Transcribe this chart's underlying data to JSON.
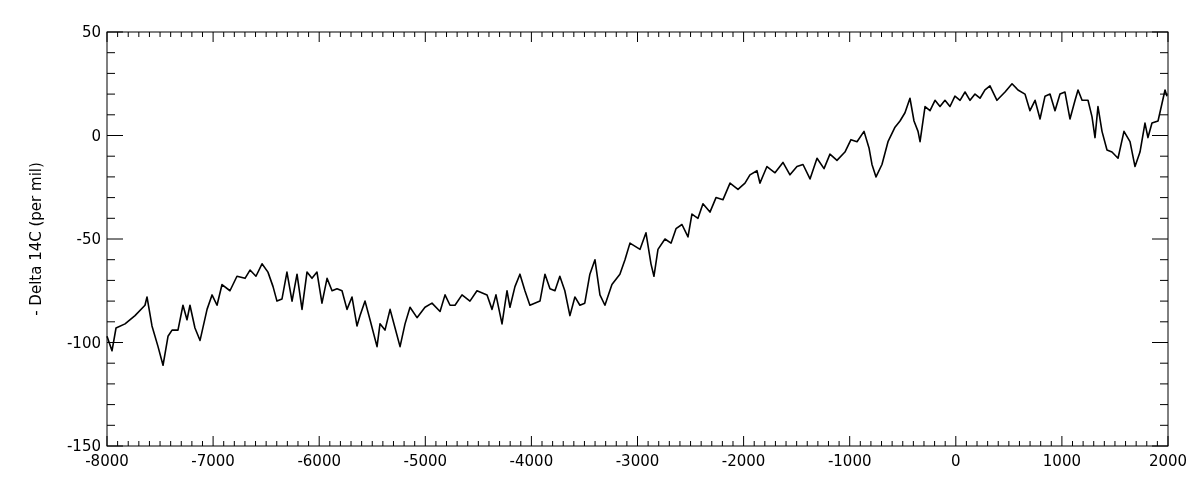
{
  "chart_data": {
    "type": "line",
    "ylabel": "- Delta 14C (per mil)",
    "xlim": [
      -8000,
      2000
    ],
    "ylim": [
      -150,
      50
    ],
    "xticks": [
      -8000,
      {
        "value": -7900,
        "label": null
      },
      {
        "value": -7800,
        "label": null
      },
      {
        "value": -7700,
        "label": null
      },
      {
        "value": -7600,
        "label": null
      },
      {
        "value": -7500,
        "label": null
      },
      {
        "value": -7400,
        "label": null
      },
      {
        "value": -7300,
        "label": null
      },
      {
        "value": -7200,
        "label": null
      },
      {
        "value": -7100,
        "label": null
      },
      -7000,
      {
        "value": -6900,
        "label": null
      },
      {
        "value": -6800,
        "label": null
      },
      {
        "value": -6700,
        "label": null
      },
      {
        "value": -6600,
        "label": null
      },
      {
        "value": -6500,
        "label": null
      },
      {
        "value": -6400,
        "label": null
      },
      {
        "value": -6300,
        "label": null
      },
      {
        "value": -6200,
        "label": null
      },
      {
        "value": -6100,
        "label": null
      },
      -6000,
      {
        "value": -5900,
        "label": null
      },
      {
        "value": -5800,
        "label": null
      },
      {
        "value": -5700,
        "label": null
      },
      {
        "value": -5600,
        "label": null
      },
      {
        "value": -5500,
        "label": null
      },
      {
        "value": -5400,
        "label": null
      },
      {
        "value": -5300,
        "label": null
      },
      {
        "value": -5200,
        "label": null
      },
      {
        "value": -5100,
        "label": null
      },
      -5000,
      {
        "value": -4900,
        "label": null
      },
      {
        "value": -4800,
        "label": null
      },
      {
        "value": -4700,
        "label": null
      },
      {
        "value": -4600,
        "label": null
      },
      {
        "value": -4500,
        "label": null
      },
      {
        "value": -4400,
        "label": null
      },
      {
        "value": -4300,
        "label": null
      },
      {
        "value": -4200,
        "label": null
      },
      {
        "value": -4100,
        "label": null
      },
      -4000,
      {
        "value": -3900,
        "label": null
      },
      {
        "value": -3800,
        "label": null
      },
      {
        "value": -3700,
        "label": null
      },
      {
        "value": -3600,
        "label": null
      },
      {
        "value": -3500,
        "label": null
      },
      {
        "value": -3400,
        "label": null
      },
      {
        "value": -3300,
        "label": null
      },
      {
        "value": -3200,
        "label": null
      },
      {
        "value": -3100,
        "label": null
      },
      -3000,
      {
        "value": -2900,
        "label": null
      },
      {
        "value": -2800,
        "label": null
      },
      {
        "value": -2700,
        "label": null
      },
      {
        "value": -2600,
        "label": null
      },
      {
        "value": -2500,
        "label": null
      },
      {
        "value": -2400,
        "label": null
      },
      {
        "value": -2300,
        "label": null
      },
      {
        "value": -2200,
        "label": null
      },
      {
        "value": -2100,
        "label": null
      },
      -2000,
      {
        "value": -1900,
        "label": null
      },
      {
        "value": -1800,
        "label": null
      },
      {
        "value": -1700,
        "label": null
      },
      {
        "value": -1600,
        "label": null
      },
      {
        "value": -1500,
        "label": null
      },
      {
        "value": -1400,
        "label": null
      },
      {
        "value": -1300,
        "label": null
      },
      {
        "value": -1200,
        "label": null
      },
      {
        "value": -1100,
        "label": null
      },
      -1000,
      {
        "value": -900,
        "label": null
      },
      {
        "value": -800,
        "label": null
      },
      {
        "value": -700,
        "label": null
      },
      {
        "value": -600,
        "label": null
      },
      {
        "value": -500,
        "label": null
      },
      {
        "value": -400,
        "label": null
      },
      {
        "value": -300,
        "label": null
      },
      {
        "value": -200,
        "label": null
      },
      {
        "value": -100,
        "label": null
      },
      0,
      {
        "value": 100,
        "label": null
      },
      {
        "value": 200,
        "label": null
      },
      {
        "value": 300,
        "label": null
      },
      {
        "value": 400,
        "label": null
      },
      {
        "value": 500,
        "label": null
      },
      {
        "value": 600,
        "label": null
      },
      {
        "value": 700,
        "label": null
      },
      {
        "value": 800,
        "label": null
      },
      {
        "value": 900,
        "label": null
      },
      1000,
      {
        "value": 1100,
        "label": null
      },
      {
        "value": 1200,
        "label": null
      },
      {
        "value": 1300,
        "label": null
      },
      {
        "value": 1400,
        "label": null
      },
      {
        "value": 1500,
        "label": null
      },
      {
        "value": 1600,
        "label": null
      },
      {
        "value": 1700,
        "label": null
      },
      {
        "value": 1800,
        "label": null
      },
      {
        "value": 1900,
        "label": null
      },
      2000
    ],
    "yticks": [
      -150,
      {
        "value": -140,
        "label": null
      },
      {
        "value": -130,
        "label": null
      },
      {
        "value": -120,
        "label": null
      },
      {
        "value": -110,
        "label": null
      },
      -100,
      {
        "value": -90,
        "label": null
      },
      {
        "value": -80,
        "label": null
      },
      {
        "value": -70,
        "label": null
      },
      {
        "value": -60,
        "label": null
      },
      -50,
      {
        "value": -40,
        "label": null
      },
      {
        "value": -30,
        "label": null
      },
      {
        "value": -20,
        "label": null
      },
      {
        "value": -10,
        "label": null
      },
      0,
      {
        "value": 10,
        "label": null
      },
      {
        "value": 20,
        "label": null
      },
      {
        "value": 30,
        "label": null
      },
      {
        "value": 40,
        "label": null
      },
      50
    ],
    "series": [
      {
        "color": "#000000",
        "x": [
          -8000,
          -7953,
          -7915,
          -7830,
          -7736,
          -7642,
          -7623,
          -7576,
          -7519,
          -7472,
          -7425,
          -7387,
          -7331,
          -7284,
          -7246,
          -7218,
          -7171,
          -7123,
          -7057,
          -7010,
          -6963,
          -6916,
          -6841,
          -6775,
          -6699,
          -6652,
          -6596,
          -6539,
          -6483,
          -6435,
          -6398,
          -6351,
          -6304,
          -6256,
          -6209,
          -6162,
          -6115,
          -6068,
          -6021,
          -5974,
          -5926,
          -5879,
          -5832,
          -5785,
          -5738,
          -5691,
          -5644,
          -5615,
          -5568,
          -5521,
          -5455,
          -5427,
          -5380,
          -5332,
          -5285,
          -5238,
          -5191,
          -5144,
          -5078,
          -5003,
          -4937,
          -4861,
          -4814,
          -4767,
          -4720,
          -4654,
          -4579,
          -4513,
          -4418,
          -4371,
          -4334,
          -4277,
          -4230,
          -4202,
          -4155,
          -4108,
          -4061,
          -4014,
          -3919,
          -3872,
          -3825,
          -3778,
          -3732,
          -3685,
          -3637,
          -3590,
          -3543,
          -3497,
          -3449,
          -3401,
          -3354,
          -3307,
          -3241,
          -3166,
          -3118,
          -3071,
          -2976,
          -2920,
          -2873,
          -2845,
          -2807,
          -2741,
          -2684,
          -2637,
          -2581,
          -2524,
          -2487,
          -2430,
          -2383,
          -2317,
          -2260,
          -2194,
          -2128,
          -2053,
          -1987,
          -1940,
          -1874,
          -1846,
          -1780,
          -1704,
          -1629,
          -1563,
          -1497,
          -1440,
          -1374,
          -1308,
          -1242,
          -1186,
          -1120,
          -1045,
          -988,
          -931,
          -865,
          -818,
          -790,
          -752,
          -696,
          -639,
          -573,
          -526,
          -479,
          -432,
          -394,
          -356,
          -337,
          -290,
          -243,
          -196,
          -149,
          -102,
          -55,
          -8,
          40,
          87,
          134,
          181,
          228,
          275,
          322,
          388,
          464,
          530,
          586,
          652,
          699,
          747,
          794,
          841,
          888,
          935,
          982,
          1029,
          1076,
          1124,
          1152,
          1190,
          1246,
          1284,
          1312,
          1340,
          1378,
          1425,
          1472,
          1529,
          1585,
          1642,
          1689,
          1736,
          1783,
          1811,
          1849,
          1906,
          1972,
          1990
        ],
        "values": [
          -97,
          -104,
          -93,
          -91,
          -87,
          -82,
          -78,
          -92,
          -102,
          -111,
          -97,
          -94,
          -94,
          -82,
          -89,
          -82,
          -93,
          -99,
          -84,
          -77,
          -82,
          -72,
          -75,
          -68,
          -69,
          -65,
          -68,
          -62,
          -66,
          -73,
          -80,
          -79,
          -66,
          -80,
          -67,
          -84,
          -66,
          -69,
          -66,
          -81,
          -69,
          -75,
          -74,
          -75,
          -84,
          -78,
          -92,
          -87,
          -80,
          -89,
          -102,
          -91,
          -94,
          -84,
          -93,
          -102,
          -91,
          -83,
          -88,
          -83,
          -81,
          -85,
          -77,
          -82,
          -82,
          -77,
          -80,
          -75,
          -77,
          -84,
          -77,
          -91,
          -75,
          -83,
          -73,
          -67,
          -75,
          -82,
          -80,
          -67,
          -74,
          -75,
          -68,
          -75,
          -87,
          -78,
          -82,
          -81,
          -67,
          -60,
          -77,
          -82,
          -72,
          -67,
          -60,
          -52,
          -55,
          -47,
          -62,
          -68,
          -55,
          -50,
          -52,
          -45,
          -43,
          -49,
          -38,
          -40,
          -33,
          -37,
          -30,
          -31,
          -23,
          -26,
          -23,
          -19,
          -17,
          -23,
          -15,
          -18,
          -13,
          -19,
          -15,
          -14,
          -21,
          -11,
          -16,
          -9,
          -12,
          -8,
          -2,
          -3,
          2,
          -6,
          -14,
          -20,
          -14,
          -3,
          4,
          7,
          11,
          18,
          7,
          2,
          -3,
          14,
          12,
          17,
          14,
          17,
          14,
          19,
          17,
          21,
          17,
          20,
          18,
          22,
          24,
          17,
          21,
          25,
          22,
          20,
          12,
          17,
          8,
          19,
          20,
          12,
          20,
          21,
          8,
          17,
          22,
          17,
          17,
          9,
          -1,
          14,
          2,
          -7,
          -8,
          -11,
          2,
          -3,
          -15,
          -8,
          6,
          -1,
          6,
          7,
          22,
          19
        ]
      }
    ]
  }
}
